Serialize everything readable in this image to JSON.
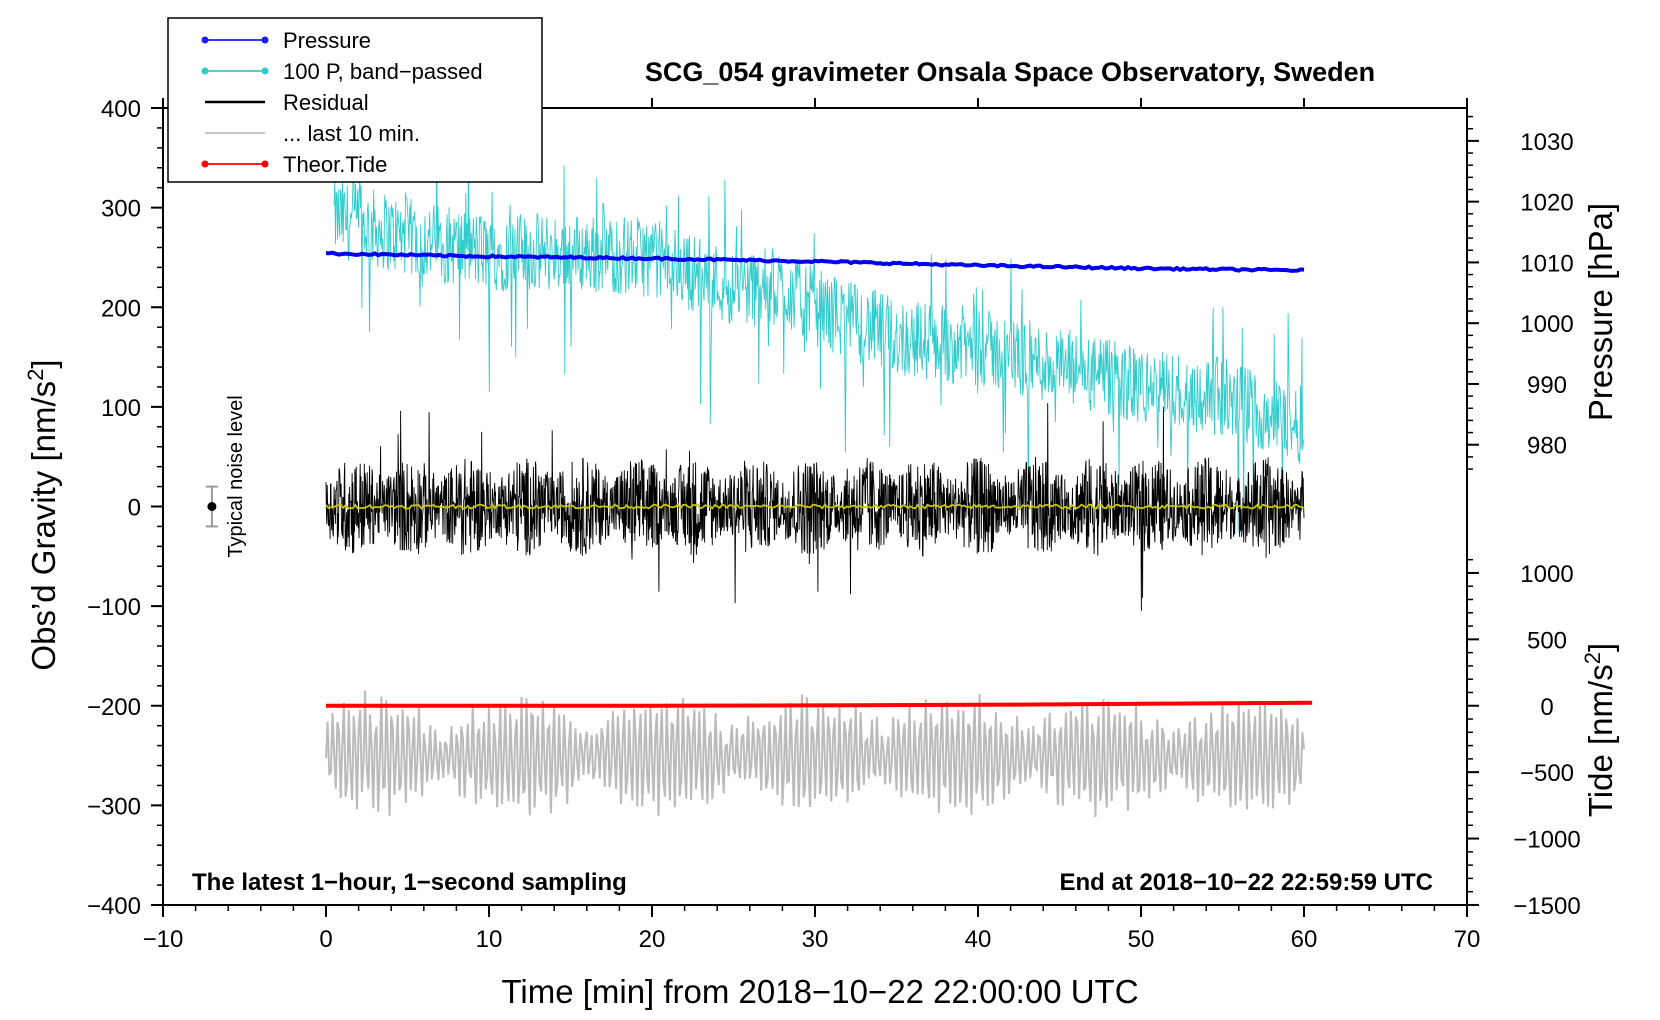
{
  "chart_data": {
    "type": "line",
    "title": "SCG_054 gravimeter Onsala Space Observatory, Sweden",
    "xlabel": "Time [min] from 2018−10−22 22:00:00 UTC",
    "ylabel_left": "Obs’d Gravity [nm/s",
    "ylabel_left_sup": "2",
    "ylabel_left_end": "]",
    "ylabel_pressure": "Pressure [hPa]",
    "ylabel_tide": "Tide [nm/s",
    "ylabel_tide_sup": "2",
    "ylabel_tide_end": "]",
    "xlim": [
      -10,
      70
    ],
    "ylim": [
      -400,
      400
    ],
    "x_ticks": [
      -10,
      0,
      10,
      20,
      30,
      40,
      50,
      60,
      70
    ],
    "x_tick_labels": [
      "−10",
      "0",
      "10",
      "20",
      "30",
      "40",
      "50",
      "60",
      "70"
    ],
    "y_ticks": [
      -400,
      -300,
      -200,
      -100,
      0,
      100,
      200,
      300,
      400
    ],
    "y_tick_labels": [
      "−400",
      "−300",
      "−200",
      "−100",
      "0",
      "100",
      "200",
      "300",
      "400"
    ],
    "pressure_axis": {
      "ticks": [
        980,
        990,
        1000,
        1010,
        1020,
        1030
      ],
      "tick_labels": [
        "980",
        "990",
        "1000",
        "1010",
        "1020",
        "1030"
      ],
      "gravity_at_980": 62,
      "gravity_per_hPa": 6.1
    },
    "tide_axis": {
      "ticks": [
        -1500,
        -1000,
        -500,
        0,
        500,
        1000
      ],
      "tick_labels": [
        "−1500",
        "−1000",
        "−500",
        "0",
        "500",
        "1000"
      ],
      "gravity_at_0": -200,
      "gravity_per_unit": 0.1333
    },
    "legend": [
      {
        "label": "Pressure",
        "color": "#1a1aff",
        "marker": true
      },
      {
        "label": "100 P, band−passed",
        "color": "#33cccc",
        "marker": true
      },
      {
        "label": "Residual",
        "color": "#000000",
        "marker": false
      },
      {
        "label": "... last 10 min.",
        "color": "#bbbbbb",
        "marker": false
      },
      {
        "label": "Theor.Tide",
        "color": "#ff0000",
        "marker": true
      }
    ],
    "series": [
      {
        "name": "Pressure",
        "color": "#0000ee",
        "x": [
          0,
          10,
          20,
          30,
          40,
          50,
          60
        ],
        "y": [
          254,
          251,
          249,
          246,
          242,
          239,
          237
        ]
      },
      {
        "name": "100 P, band−passed",
        "color": "#33cccc",
        "x": [
          0.5,
          5,
          10,
          15,
          20,
          25,
          28,
          30,
          35,
          40,
          45,
          50,
          55,
          60
        ],
        "y": [
          290,
          270,
          255,
          255,
          250,
          220,
          220,
          200,
          170,
          160,
          140,
          120,
          110,
          80
        ]
      },
      {
        "name": "Residual",
        "color": "#000000",
        "x": [
          0,
          60
        ],
        "y": [
          0,
          0
        ],
        "amplitude": 50
      },
      {
        "name": "Residual smoothed",
        "color": "#c8c800",
        "x": [
          0,
          60
        ],
        "y": [
          0,
          0
        ]
      },
      {
        "name": "... last 10 min.",
        "color": "#bbbbbb",
        "x": [
          0,
          60
        ],
        "y": [
          -250,
          -250
        ],
        "amplitude": 55
      },
      {
        "name": "Theor.Tide",
        "color": "#ff0000",
        "x": [
          0,
          20,
          40,
          60.5
        ],
        "y": [
          -200,
          -200,
          -199,
          -197
        ]
      }
    ],
    "noise_marker": {
      "label": "Typical noise level",
      "x": -7,
      "y": 0,
      "err": 20
    },
    "annotations": {
      "left": "The latest 1−hour, 1−second sampling",
      "right": "End at 2018−10−22 22:59:59 UTC"
    }
  }
}
